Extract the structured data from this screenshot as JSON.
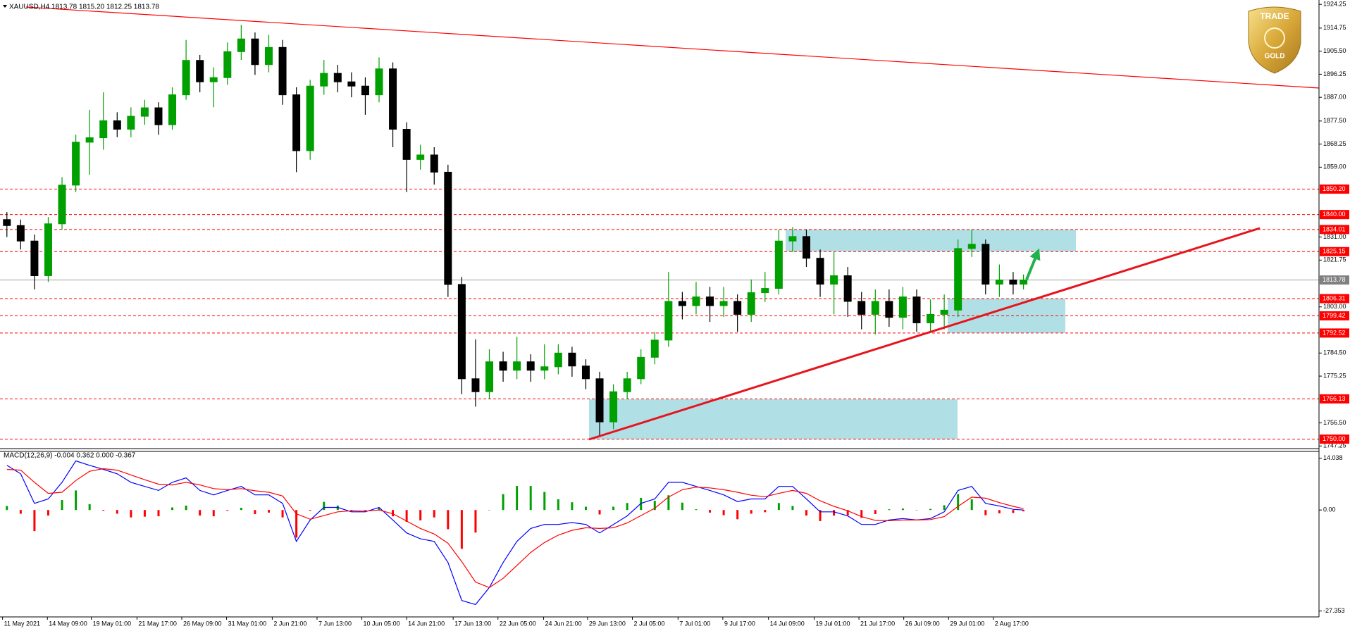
{
  "chart_data": [
    {
      "type": "candlestick",
      "title": "XAUUSD,H4  1813.78 1815.20 1812.25 1813.78",
      "up_color": "#00a000",
      "down_color": "#000000",
      "xlim": [
        0,
        382.75
      ],
      "xticks": [
        {
          "value": 0.75,
          "label": "11 May 2021"
        },
        {
          "value": 13.75,
          "label": "14 May 09:00"
        },
        {
          "value": 26.5,
          "label": "19 May 01:00"
        },
        {
          "value": 39.75,
          "label": "21 May 17:00"
        },
        {
          "value": 52.75,
          "label": "26 May 09:00"
        },
        {
          "value": 65.75,
          "label": "31 May 01:00"
        },
        {
          "value": 79,
          "label": "2 Jun 21:00"
        },
        {
          "value": 92,
          "label": "7 Jun 13:00"
        },
        {
          "value": 105,
          "label": "10 Jun 05:00"
        },
        {
          "value": 118,
          "label": "14 Jun 21:00"
        },
        {
          "value": 131.5,
          "label": "17 Jun 13:00"
        },
        {
          "value": 144.5,
          "label": "22 Jun 05:00"
        },
        {
          "value": 157.75,
          "label": "24 Jun 21:00"
        },
        {
          "value": 170.5,
          "label": "29 Jun 13:00"
        },
        {
          "value": 183.5,
          "label": "2 Jul 05:00"
        },
        {
          "value": 196.75,
          "label": "7 Jul 01:00"
        },
        {
          "value": 209.75,
          "label": "9 Jul 17:00"
        },
        {
          "value": 223,
          "label": "14 Jul 09:00"
        },
        {
          "value": 236.25,
          "label": "19 Jul 01:00"
        },
        {
          "value": 249.25,
          "label": "21 Jul 17:00"
        },
        {
          "value": 262.25,
          "label": "26 Jul 09:00"
        },
        {
          "value": 275.25,
          "label": "29 Jul 01:00"
        },
        {
          "value": 288.25,
          "label": "2 Aug 17:00"
        }
      ],
      "ylim": [
        1746.2,
        1926.0
      ],
      "yticks": [
        1924.25,
        1914.75,
        {
          "value": 1905.5,
          "label": "1905.50"
        },
        1896.25,
        {
          "value": 1887,
          "label": "1887.00"
        },
        {
          "value": 1877.5,
          "label": "1877.50"
        },
        1868.25,
        {
          "value": 1859,
          "label": "1859.00"
        },
        {
          "value": 1831,
          "label": "1831.00"
        },
        1821.75,
        {
          "value": 1803,
          "label": "1803.00"
        },
        {
          "value": 1784.5,
          "label": "1784.50"
        },
        1775.25,
        {
          "value": 1756.5,
          "label": "1756.50"
        },
        1747.25
      ],
      "level_color": "#ff0000",
      "levels": [
        {
          "value": 1850.2,
          "label": "1850.20"
        },
        {
          "value": 1840,
          "label": "1840.00"
        },
        1834.01,
        1825.15,
        1806.31,
        1799.42,
        1792.52,
        1766.13,
        {
          "value": 1750,
          "label": "1750.00"
        }
      ],
      "last_price": 1813.78,
      "last_price_color": "#808080",
      "x": [
        2,
        6,
        10,
        14,
        18,
        22,
        26,
        30,
        34,
        38,
        42,
        46,
        50,
        54,
        58,
        62,
        66,
        70,
        74,
        78,
        82,
        86,
        90,
        94,
        98,
        102,
        106,
        110,
        114,
        118,
        122,
        126,
        130,
        134,
        138,
        142,
        146,
        150,
        154,
        158,
        162,
        166,
        170,
        174,
        178,
        182,
        186,
        190,
        194,
        198,
        202,
        206,
        210,
        214,
        218,
        222,
        226,
        230,
        234,
        238,
        242,
        246,
        250,
        254,
        258,
        262,
        266,
        270,
        274,
        278,
        282,
        286,
        290,
        294,
        297
      ],
      "open": [
        1838.0,
        1835.6,
        1829.4,
        1815.5,
        1836.3,
        1851.8,
        1869.0,
        1870.8,
        1877.6,
        1874.2,
        1879.4,
        1882.8,
        1876.0,
        1888.0,
        1901.8,
        1893.2,
        1894.9,
        1905.3,
        1910.4,
        1900.1,
        1907.0,
        1888.0,
        1865.6,
        1891.5,
        1896.6,
        1893.2,
        1891.5,
        1888.0,
        1898.4,
        1874.2,
        1862.1,
        1863.9,
        1857.0,
        1812.0,
        1774.2,
        1769.0,
        1781.0,
        1777.6,
        1781.0,
        1777.6,
        1779.0,
        1784.5,
        1779.3,
        1774.2,
        1756.9,
        1769.0,
        1774.2,
        1782.8,
        1789.7,
        1805.2,
        1803.5,
        1807.0,
        1803.5,
        1805.2,
        1800.0,
        1808.7,
        1810.4,
        1829.4,
        1831.2,
        1822.5,
        1812.1,
        1815.5,
        1805.2,
        1800.0,
        1805.2,
        1798.8,
        1807.0,
        1796.6,
        1800.0,
        1801.7,
        1826.4,
        1828.1,
        1812.1,
        1813.8,
        1812.1
      ],
      "high": [
        1841,
        1838,
        1832,
        1839,
        1855,
        1872,
        1882,
        1889,
        1881,
        1883,
        1886,
        1885,
        1891,
        1910,
        1904,
        1899,
        1909,
        1916,
        1913,
        1912,
        1910,
        1891,
        1894,
        1902,
        1900,
        1897,
        1895,
        1903,
        1901,
        1877,
        1868,
        1867,
        1860,
        1815,
        1790,
        1786,
        1785,
        1791,
        1784,
        1788,
        1788,
        1787,
        1782,
        1777,
        1772,
        1777,
        1786,
        1793,
        1817,
        1809,
        1813,
        1811,
        1811,
        1808,
        1814,
        1817,
        1834,
        1835,
        1834,
        1826,
        1825,
        1819,
        1809,
        1810,
        1810,
        1811,
        1810,
        1806,
        1808,
        1830,
        1834,
        1830,
        1820,
        1817,
        1816
      ],
      "low": [
        1831,
        1826,
        1810,
        1813,
        1834,
        1849,
        1856,
        1866,
        1871,
        1871,
        1876,
        1872,
        1874,
        1886,
        1889,
        1883,
        1892,
        1902,
        1896,
        1897,
        1884,
        1857,
        1862,
        1888,
        1889,
        1887,
        1880,
        1885,
        1867,
        1849,
        1858,
        1852,
        1807,
        1768,
        1763,
        1766,
        1773,
        1774,
        1773,
        1774,
        1776,
        1775,
        1770,
        1751,
        1754,
        1766,
        1772,
        1780,
        1787,
        1798,
        1800,
        1797,
        1799,
        1793,
        1797,
        1805,
        1808,
        1825,
        1819,
        1807,
        1800,
        1799,
        1794,
        1792,
        1795,
        1794,
        1793,
        1793,
        1794,
        1799,
        1823,
        1808,
        1807,
        1808,
        1810
      ],
      "close": [
        1835.6,
        1829.4,
        1815.5,
        1836.3,
        1851.8,
        1869.0,
        1870.8,
        1877.6,
        1874.2,
        1879.4,
        1882.8,
        1876.0,
        1888.0,
        1901.8,
        1893.2,
        1894.9,
        1905.3,
        1910.4,
        1900.1,
        1907.0,
        1888.0,
        1865.6,
        1891.5,
        1896.6,
        1893.2,
        1891.5,
        1888.0,
        1898.4,
        1874.2,
        1862.1,
        1863.9,
        1857.0,
        1812.0,
        1774.2,
        1769.0,
        1781.0,
        1777.6,
        1781.0,
        1777.6,
        1779.0,
        1784.5,
        1779.3,
        1774.2,
        1756.9,
        1769.0,
        1774.2,
        1782.8,
        1789.7,
        1805.2,
        1803.5,
        1807.0,
        1803.5,
        1805.2,
        1800.0,
        1808.7,
        1810.4,
        1829.4,
        1831.2,
        1822.5,
        1812.1,
        1815.5,
        1805.2,
        1800.0,
        1805.2,
        1798.8,
        1807.0,
        1796.6,
        1800.0,
        1801.7,
        1826.4,
        1828.1,
        1812.1,
        1813.8,
        1812.1,
        1813.78
      ],
      "logo": {
        "top": "TRADE",
        "bottom": "GOLD"
      }
    },
    {
      "type": "macd",
      "title": "MACD(12,26,9) -0.004 0.362 0.000 -0.367",
      "ylim": [
        -28.95,
        15.87
      ],
      "yticks": [
        14.038,
        {
          "value": 0,
          "label": "0.00"
        },
        -27.353
      ],
      "histogram": {
        "up_color": "#00a000",
        "down_color": "#ff0000",
        "values": [
          1.1,
          -1.0,
          -5.7,
          -1.5,
          2.7,
          5.3,
          1.6,
          -0.2,
          -1.0,
          -2.0,
          -1.8,
          -1.7,
          0.7,
          1.2,
          -1.5,
          -1.7,
          -0.2,
          0.6,
          -1.1,
          -0.7,
          -2.0,
          -7.5,
          -0.2,
          2.2,
          1.2,
          -0.3,
          -0.2,
          0.7,
          -1.7,
          -3.2,
          -2.8,
          -2.0,
          -5.2,
          -10.5,
          -6.1,
          0.0,
          4.3,
          6.5,
          6.5,
          4.9,
          2.9,
          2.1,
          0.9,
          -1.2,
          0.9,
          1.9,
          3.3,
          2.5,
          4.0,
          2.0,
          0.2,
          -0.7,
          -1.4,
          -2.5,
          -1.0,
          -0.6,
          1.9,
          1.1,
          -1.5,
          -3.0,
          -1.5,
          -1.4,
          -2.1,
          -1.1,
          0.2,
          0.4,
          0.0,
          0.3,
          1.3,
          4.3,
          2.9,
          -1.4,
          -0.9,
          -0.8,
          -0.367
        ]
      },
      "series": [
        {
          "color": "#0000ff",
          "values": [
            12.1,
            9.8,
            1.8,
            3.0,
            7.5,
            13.3,
            12.1,
            11.0,
            9.8,
            7.5,
            6.4,
            5.3,
            7.5,
            8.7,
            5.3,
            4.1,
            5.3,
            6.4,
            4.1,
            4.1,
            1.8,
            -8.5,
            -2.7,
            0.7,
            0.7,
            -0.5,
            -0.5,
            0.7,
            -2.7,
            -6.2,
            -7.8,
            -8.5,
            -14.2,
            -24.5,
            -25.6,
            -21.0,
            -14.2,
            -8.5,
            -5.0,
            -3.9,
            -3.9,
            -3.4,
            -3.9,
            -6.2,
            -3.9,
            -1.6,
            1.8,
            3.0,
            7.5,
            7.5,
            6.4,
            5.3,
            4.1,
            2.3,
            3.0,
            3.0,
            6.4,
            6.4,
            3.0,
            -0.5,
            -0.5,
            -1.6,
            -3.9,
            -3.9,
            -2.7,
            -2.3,
            -2.7,
            -2.3,
            -0.5,
            5.3,
            6.4,
            1.8,
            1.1,
            0.2,
            -0.004
          ]
        },
        {
          "color": "#ff0000",
          "values": [
            11.0,
            10.8,
            7.5,
            4.5,
            4.8,
            8.0,
            10.5,
            11.2,
            10.8,
            9.5,
            8.2,
            7.0,
            6.8,
            7.5,
            6.8,
            5.8,
            5.5,
            5.8,
            5.2,
            4.8,
            3.8,
            -1.0,
            -2.5,
            -1.5,
            -0.5,
            -0.2,
            -0.3,
            0.0,
            -1.0,
            -3.0,
            -5.0,
            -6.5,
            -9.0,
            -14.0,
            -19.5,
            -21.0,
            -18.5,
            -15.0,
            -11.5,
            -8.8,
            -6.8,
            -5.5,
            -4.8,
            -5.0,
            -4.8,
            -3.5,
            -1.5,
            0.5,
            3.5,
            5.5,
            6.2,
            6.0,
            5.5,
            4.8,
            4.0,
            3.6,
            4.5,
            5.3,
            4.5,
            2.5,
            1.0,
            -0.2,
            -1.8,
            -2.8,
            -2.9,
            -2.7,
            -2.7,
            -2.6,
            -1.8,
            1.0,
            3.5,
            3.2,
            2.0,
            1.0,
            0.362
          ]
        }
      ]
    }
  ]
}
